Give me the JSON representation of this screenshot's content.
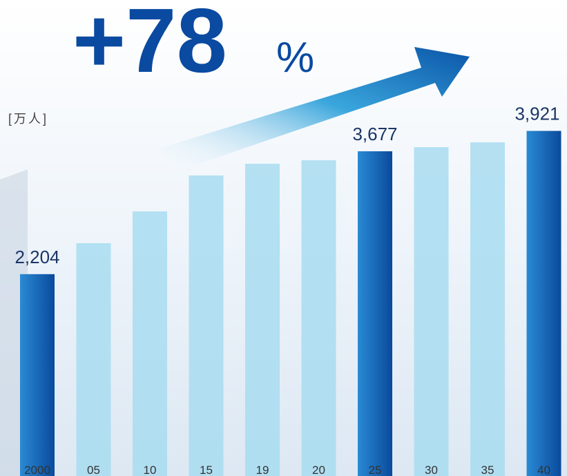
{
  "chart_data": {
    "type": "bar",
    "headline": "+78",
    "headline_unit": "%",
    "unit": "[万人]",
    "categories": [
      "2000",
      "05",
      "10",
      "15",
      "19",
      "20",
      "25",
      "30",
      "35",
      "40"
    ],
    "values": [
      2204,
      2575,
      2956,
      3387,
      3527,
      3569,
      3677,
      3726,
      3784,
      3921
    ],
    "value_labels": [
      "2,204",
      null,
      null,
      null,
      null,
      null,
      "3,677",
      null,
      null,
      "3,921"
    ],
    "colors": [
      "#0a5fb4",
      "#a8dcf0",
      "#a8dcf0",
      "#a8dcf0",
      "#a8dcf0",
      "#a8dcf0",
      "#0a5fb4",
      "#a8dcf0",
      "#a8dcf0",
      "#0a5fb4"
    ],
    "ylim": [
      0,
      5490
    ]
  }
}
